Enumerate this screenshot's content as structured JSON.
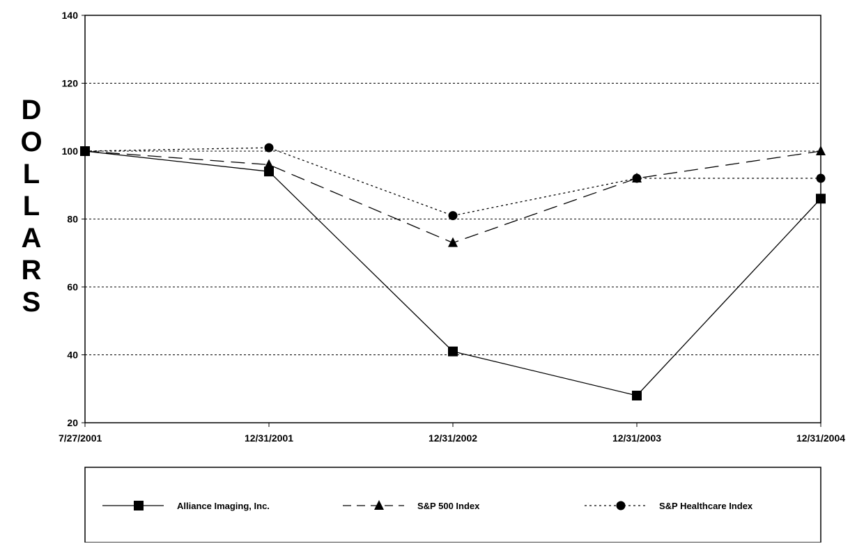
{
  "chart_data": {
    "type": "line",
    "ylabel": "DOLLARS",
    "xlabel": "",
    "title": "",
    "ylim": [
      20,
      140
    ],
    "yticks": [
      20,
      40,
      60,
      80,
      100,
      120,
      140
    ],
    "categories": [
      "7/27/2001",
      "12/31/2001",
      "12/31/2002",
      "12/31/2003",
      "12/31/2004"
    ],
    "grid": "horizontal dashed",
    "legend_placement": "bottom",
    "series": [
      {
        "name": "Alliance Imaging, Inc.",
        "marker": "square",
        "line": "solid",
        "values": [
          100,
          94,
          41,
          28,
          86
        ]
      },
      {
        "name": "S&P 500 Index",
        "marker": "triangle",
        "line": "long-dash",
        "values": [
          100,
          96,
          73,
          92,
          100
        ]
      },
      {
        "name": "S&P Healthcare Index",
        "marker": "circle",
        "line": "dotted",
        "values": [
          100,
          101,
          81,
          92,
          92
        ]
      }
    ]
  }
}
